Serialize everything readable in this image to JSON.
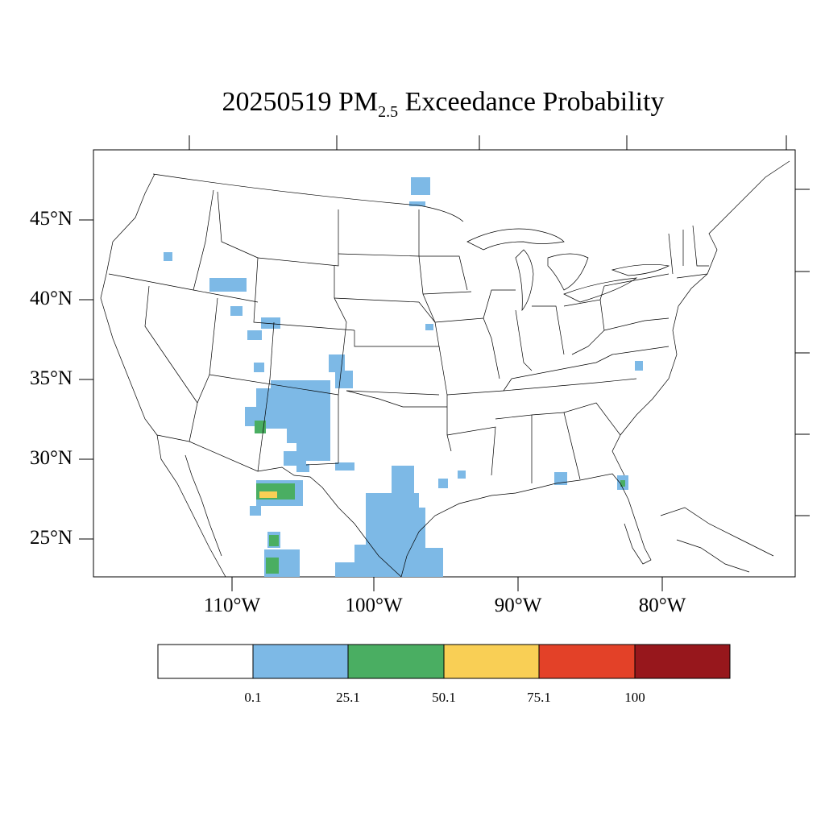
{
  "title": {
    "prefix": "20250519 PM",
    "subscript": "2.5",
    "suffix": " Exceedance Probability"
  },
  "map": {
    "lat_labels": [
      "45°N",
      "40°N",
      "35°N",
      "30°N",
      "25°N"
    ],
    "lon_labels": [
      "110°W",
      "100°W",
      "90°W",
      "80°W"
    ]
  },
  "legend": {
    "colors": [
      "#ffffff",
      "#7db9e6",
      "#4aae62",
      "#f9cf55",
      "#e34128",
      "#97171c"
    ],
    "labels": [
      "0.1",
      "25.1",
      "50.1",
      "75.1",
      "100"
    ]
  }
}
